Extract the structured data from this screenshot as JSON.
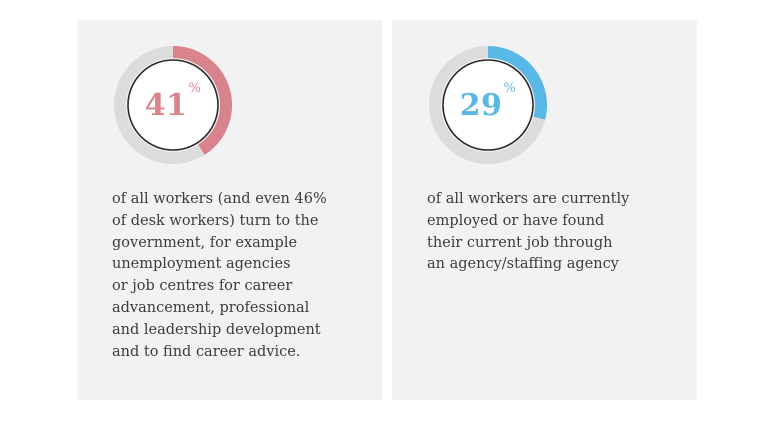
{
  "chart_data": [
    {
      "type": "pie",
      "value": 41,
      "max": 100,
      "label": "41",
      "unit": "%",
      "color": "#d9848c",
      "track_color": "#dcdcdc",
      "description": "of all workers (and even 46%\nof desk workers) turn to the\ngovernment, for example\nunemployment agencies\nor job centres for career\nadvancement, professional\nand leadership development\nand to find career advice."
    },
    {
      "type": "pie",
      "value": 29,
      "max": 100,
      "label": "29",
      "unit": "%",
      "color": "#5ab8e6",
      "track_color": "#dcdcdc",
      "description": "of all workers are currently\nemployed or have found\ntheir current job through\nan agency/staffing agency"
    }
  ],
  "cards": [
    {
      "value_text": "41",
      "unit": "%"
    },
    {
      "value_text": "29",
      "unit": "%"
    }
  ]
}
